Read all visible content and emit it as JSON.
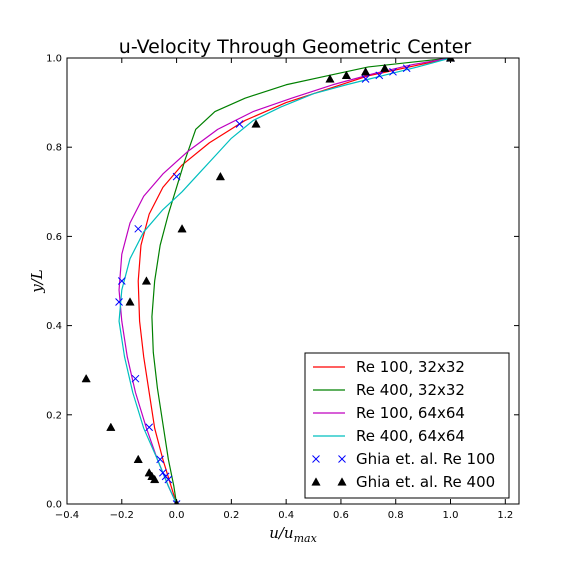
{
  "chart_data": {
    "type": "line",
    "title": "u-Velocity Through Geometric Center",
    "xlabel": "u/u",
    "xlabel_sub": "max",
    "ylabel": "y/L",
    "xlim": [
      -0.4,
      1.25
    ],
    "ylim": [
      0.0,
      1.0
    ],
    "xticks": [
      -0.4,
      -0.2,
      0.0,
      0.2,
      0.4,
      0.6,
      0.8,
      1.0,
      1.2
    ],
    "xtick_labels": [
      "−0.4",
      "−0.2",
      "0.0",
      "0.2",
      "0.4",
      "0.6",
      "0.8",
      "1.0",
      "1.2"
    ],
    "yticks": [
      0.0,
      0.2,
      0.4,
      0.6,
      0.8,
      1.0
    ],
    "ytick_labels": [
      "0.0",
      "0.2",
      "0.4",
      "0.6",
      "0.8",
      "1.0"
    ],
    "grid": false,
    "legend_position": "lower-right",
    "series": [
      {
        "name": "Re 100, 32x32",
        "kind": "line",
        "color": "#ff0000",
        "x": [
          0.0,
          -0.02,
          -0.05,
          -0.08,
          -0.1,
          -0.12,
          -0.135,
          -0.14,
          -0.13,
          -0.1,
          -0.05,
          0.02,
          0.12,
          0.25,
          0.4,
          0.55,
          0.7,
          0.85,
          1.0
        ],
        "y": [
          0.0,
          0.04,
          0.1,
          0.17,
          0.25,
          0.33,
          0.41,
          0.5,
          0.58,
          0.65,
          0.71,
          0.76,
          0.81,
          0.86,
          0.9,
          0.93,
          0.96,
          0.98,
          1.0
        ]
      },
      {
        "name": "Re 400, 32x32",
        "kind": "line",
        "color": "#008000",
        "x": [
          0.0,
          -0.01,
          -0.03,
          -0.05,
          -0.07,
          -0.085,
          -0.09,
          -0.08,
          -0.06,
          -0.03,
          0.0,
          0.03,
          0.07,
          0.14,
          0.25,
          0.4,
          0.55,
          0.7,
          0.85,
          1.0
        ],
        "y": [
          0.0,
          0.04,
          0.1,
          0.18,
          0.26,
          0.34,
          0.42,
          0.5,
          0.58,
          0.65,
          0.71,
          0.77,
          0.84,
          0.88,
          0.91,
          0.94,
          0.96,
          0.98,
          0.99,
          1.0
        ]
      },
      {
        "name": "Re 100, 64x64",
        "kind": "line",
        "color": "#bf00bf",
        "x": [
          0.0,
          -0.03,
          -0.07,
          -0.11,
          -0.15,
          -0.18,
          -0.2,
          -0.21,
          -0.2,
          -0.17,
          -0.12,
          -0.05,
          0.04,
          0.15,
          0.28,
          0.42,
          0.57,
          0.72,
          0.86,
          1.0
        ],
        "y": [
          0.0,
          0.04,
          0.1,
          0.17,
          0.25,
          0.33,
          0.41,
          0.48,
          0.56,
          0.63,
          0.69,
          0.74,
          0.79,
          0.84,
          0.88,
          0.91,
          0.94,
          0.965,
          0.985,
          1.0
        ]
      },
      {
        "name": "Re 400, 64x64",
        "kind": "line",
        "color": "#00bfbf",
        "x": [
          0.0,
          -0.03,
          -0.07,
          -0.12,
          -0.16,
          -0.19,
          -0.21,
          -0.2,
          -0.17,
          -0.12,
          -0.05,
          0.02,
          0.08,
          0.14,
          0.2,
          0.28,
          0.38,
          0.5,
          0.62,
          0.75,
          0.88,
          1.0
        ],
        "y": [
          0.0,
          0.04,
          0.1,
          0.17,
          0.25,
          0.33,
          0.41,
          0.48,
          0.55,
          0.61,
          0.66,
          0.7,
          0.74,
          0.78,
          0.82,
          0.86,
          0.89,
          0.92,
          0.94,
          0.96,
          0.98,
          1.0
        ]
      },
      {
        "name": "Ghia et. al. Re 100",
        "kind": "marker-x",
        "color": "#0000ff",
        "x": [
          0.0,
          -0.03,
          -0.04,
          -0.05,
          -0.06,
          -0.1,
          -0.15,
          -0.21,
          -0.2,
          -0.14,
          0.0,
          0.23,
          0.69,
          0.74,
          0.79,
          0.84,
          1.0
        ],
        "y": [
          0.0,
          0.055,
          0.062,
          0.07,
          0.1,
          0.172,
          0.281,
          0.453,
          0.5,
          0.617,
          0.734,
          0.852,
          0.953,
          0.961,
          0.969,
          0.977,
          1.0
        ]
      },
      {
        "name": "Ghia et. al. Re 400",
        "kind": "marker-triangle",
        "color": "#000000",
        "x": [
          0.0,
          -0.08,
          -0.09,
          -0.1,
          -0.14,
          -0.24,
          -0.33,
          -0.17,
          -0.11,
          0.02,
          0.16,
          0.29,
          0.56,
          0.62,
          0.69,
          0.76,
          1.0
        ],
        "y": [
          0.0,
          0.055,
          0.062,
          0.07,
          0.1,
          0.172,
          0.281,
          0.453,
          0.5,
          0.617,
          0.734,
          0.852,
          0.953,
          0.961,
          0.969,
          0.977,
          1.0
        ]
      }
    ]
  }
}
